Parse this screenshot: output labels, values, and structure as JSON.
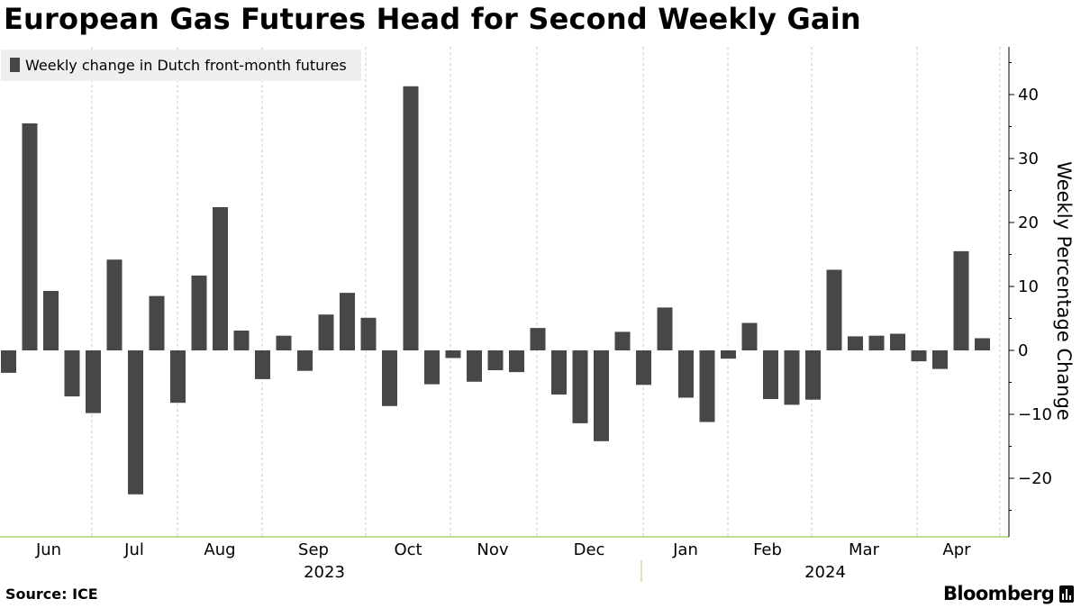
{
  "title": "European Gas Futures Head for Second Weekly Gain",
  "source": "Source: ICE",
  "brand": "Bloomberg",
  "colors": {
    "bar": "#474747",
    "grid": "#c8c8c8",
    "axis_line": "#a6d36b",
    "legend_bg": "#efefef"
  },
  "chart_data": {
    "type": "bar",
    "title": "European Gas Futures Head for Second Weekly Gain",
    "ylabel": "Weekly Percentage Change",
    "ylim": [
      -28,
      47
    ],
    "yticks": [
      -20,
      -10,
      0,
      10,
      20,
      30,
      40
    ],
    "grid": {
      "x": true,
      "y": false
    },
    "legend": {
      "position": "top-left",
      "entries": [
        "Weekly change in Dutch front-month futures"
      ]
    },
    "months": [
      "Jun",
      "Jul",
      "Aug",
      "Sep",
      "Oct",
      "Nov",
      "Dec",
      "Jan",
      "Feb",
      "Mar",
      "Apr"
    ],
    "years": [
      "2023",
      "2024"
    ],
    "series": [
      {
        "name": "Weekly change in Dutch front-month futures",
        "values": [
          -3.5,
          35.5,
          9.3,
          -7.2,
          -9.8,
          14.2,
          -22.5,
          8.5,
          -8.2,
          11.7,
          22.4,
          3.1,
          -4.5,
          2.3,
          -3.2,
          5.6,
          9.0,
          5.1,
          -8.7,
          41.3,
          -5.3,
          -1.2,
          -4.9,
          -3.1,
          -3.4,
          3.5,
          -6.9,
          -11.4,
          -14.2,
          2.9,
          -5.4,
          6.7,
          -7.4,
          -11.2,
          -1.3,
          4.3,
          -7.6,
          -8.5,
          -7.7,
          12.6,
          2.2,
          2.3,
          2.6,
          -1.7,
          -2.9,
          15.5,
          1.9
        ]
      }
    ]
  }
}
